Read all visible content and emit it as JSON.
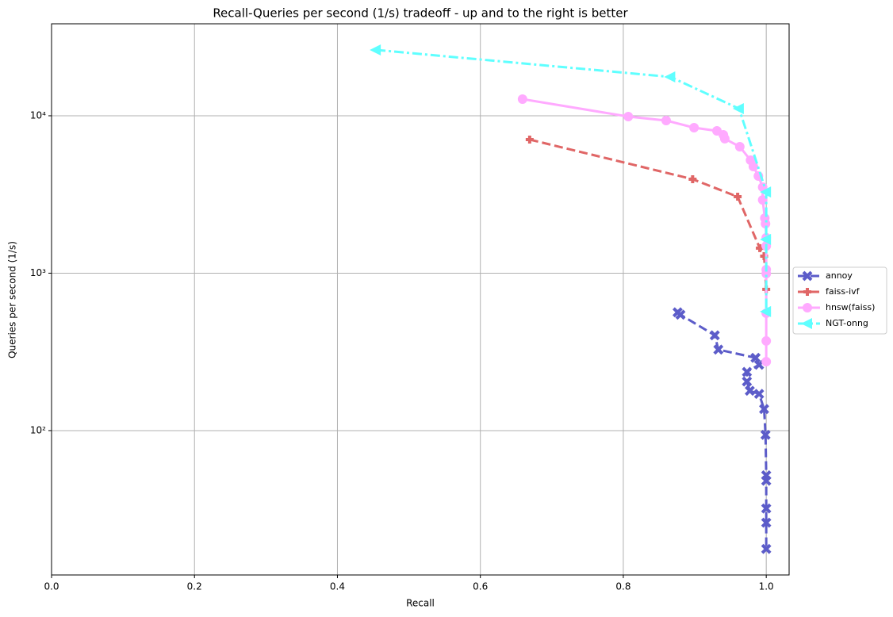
{
  "chart_data": {
    "type": "line",
    "title": "Recall-Queries per second (1/s) tradeoff - up and to the right is better",
    "x_label": "Recall",
    "y_label": "Queries per second (1/s)",
    "xlim": [
      0,
      1.032
    ],
    "ylim": [
      12.1,
      38400
    ],
    "yscale": "log",
    "grid": true,
    "legend": "outside-right",
    "xticks": [
      {
        "value": 0,
        "label": "0.0"
      },
      0.2,
      0.4,
      0.6,
      0.8,
      {
        "value": 1,
        "label": "1.0"
      }
    ],
    "yticks": [
      {
        "value": 100,
        "label": "10²"
      },
      {
        "value": 1000,
        "label": "10³"
      },
      {
        "value": 10000,
        "label": "10⁴"
      }
    ],
    "series": [
      {
        "name": "annoy",
        "color": "#5c5cc9",
        "marker": "x",
        "linestyle": "dashed",
        "x": [
          0.876,
          0.88,
          0.928,
          0.933,
          0.985,
          0.99,
          0.973,
          0.973,
          0.977,
          0.99,
          0.997,
          0.999,
          1.0,
          1.0,
          1.0,
          1.0,
          1.0
        ],
        "values": [
          564,
          545,
          403,
          327,
          290,
          262,
          236,
          205,
          179,
          171,
          137,
          94,
          52,
          48,
          32,
          26,
          17.7
        ]
      },
      {
        "name": "faiss-ivf",
        "color": "#e06666",
        "marker": "P",
        "linestyle": "dashed",
        "x": [
          0.669,
          0.897,
          0.96,
          0.991,
          0.997,
          1.0
        ],
        "values": [
          7060,
          3955,
          3060,
          1442,
          1283,
          789
        ]
      },
      {
        "name": "hnsw(faiss)",
        "color": "#ffaaff",
        "marker": "o",
        "linestyle": "solid",
        "x": [
          0.659,
          0.807,
          0.86,
          0.899,
          0.931,
          0.94,
          0.942,
          0.963,
          0.978,
          0.982,
          0.989,
          0.995,
          0.995,
          0.998,
          0.999,
          1.0,
          1.0,
          1.0,
          1.0,
          1.0,
          1.0,
          1.0
        ],
        "values": [
          12760,
          9880,
          9330,
          8400,
          8020,
          7570,
          7150,
          6360,
          5220,
          4760,
          4140,
          3520,
          2920,
          2240,
          2060,
          1680,
          1490,
          1054,
          994,
          557,
          371,
          274
        ]
      },
      {
        "name": "NGT-onng",
        "color": "#5fffff",
        "marker": "<",
        "linestyle": "dashdot",
        "x": [
          0.454,
          0.866,
          0.962,
          1.0,
          1.0,
          1.0
        ],
        "values": [
          26200,
          17650,
          11090,
          3280,
          1640,
          570
        ]
      }
    ]
  }
}
